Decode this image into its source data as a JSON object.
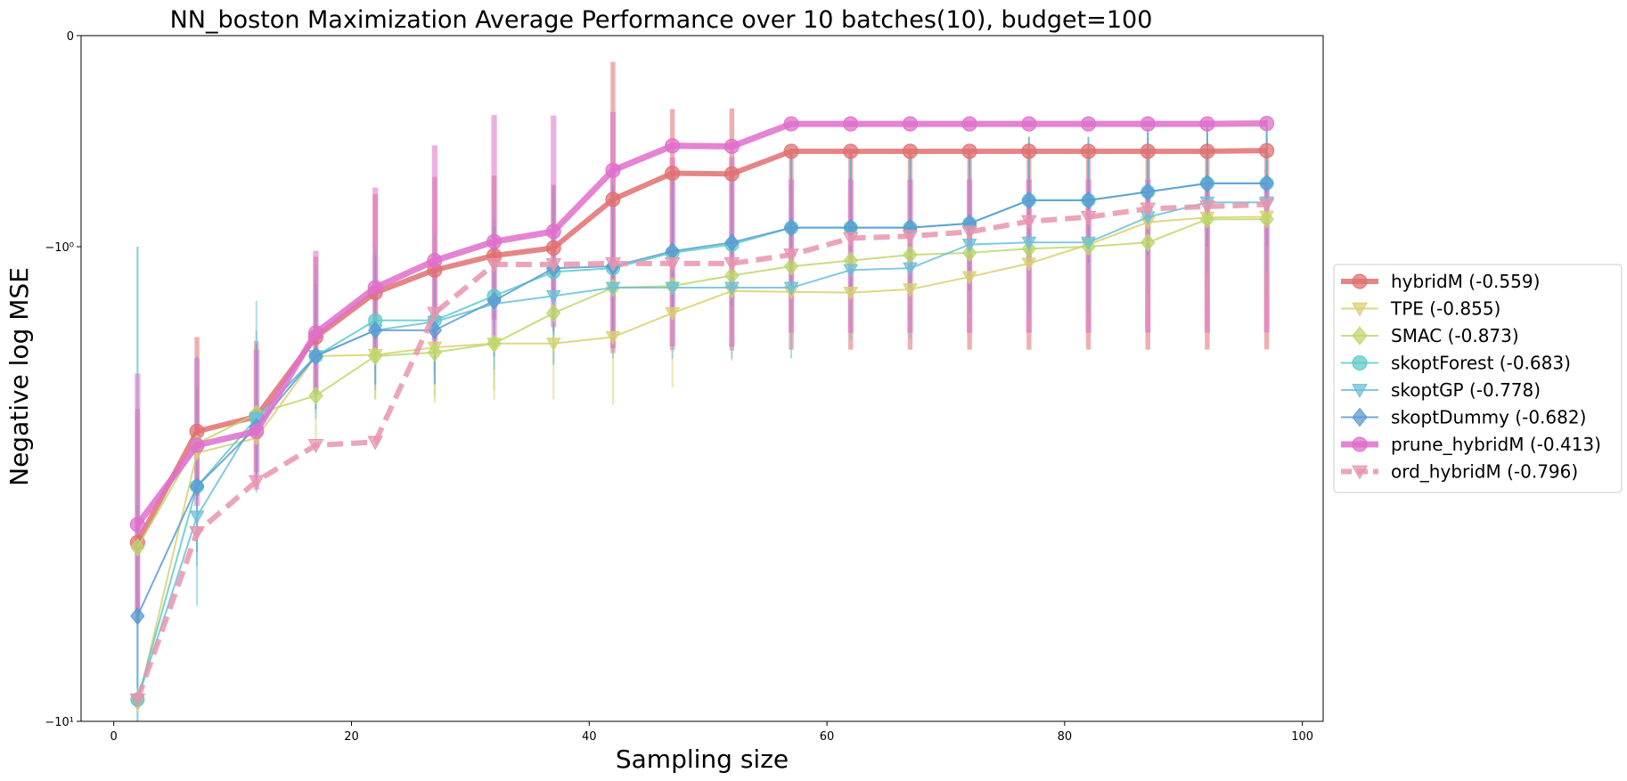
{
  "chart_data": {
    "type": "line",
    "title": "NN_boston Maximization Average Performance over 10 batches(10), budget=100",
    "xlabel": "Sampling size",
    "ylabel": "Negative log MSE",
    "xlim": [
      -2.75,
      101.75
    ],
    "ylim": [
      -10,
      0
    ],
    "yscale": "symlog",
    "x_ticks": [
      0,
      20,
      40,
      60,
      80,
      100
    ],
    "x_tick_labels": [
      "0",
      "20",
      "40",
      "60",
      "80",
      "100"
    ],
    "y_ticks": [
      0,
      -1,
      -10
    ],
    "y_tick_labels": [
      "0",
      "−10⁰",
      "−10¹"
    ],
    "grid": false,
    "legend_position": "right",
    "x": [
      2,
      7,
      12,
      17,
      22,
      27,
      32,
      37,
      42,
      47,
      52,
      57,
      62,
      67,
      72,
      77,
      82,
      87,
      92,
      97
    ],
    "series": [
      {
        "name": "hybridM (-0.559)",
        "color": "#e07070",
        "marker": "circle",
        "style": "solid",
        "width": 6,
        "values": [
          -4.2,
          -2.45,
          -2.28,
          -1.55,
          -1.25,
          -1.12,
          -1.044,
          -1.006,
          -0.776,
          -0.652,
          -0.655,
          -0.548,
          -0.548,
          -0.548,
          -0.548,
          -0.548,
          -0.548,
          -0.548,
          -0.548,
          -0.545
        ],
        "errors": [
          2.0,
          0.9,
          0.7,
          0.5,
          0.5,
          0.45,
          0.38,
          0.3,
          0.9,
          1.0,
          1.0,
          1.1,
          1.1,
          1.1,
          1.1,
          1.1,
          1.1,
          1.1,
          1.1,
          1.1
        ]
      },
      {
        "name": "TPE (-0.855)",
        "color": "#d8d070",
        "marker": "triangle-down",
        "style": "solid",
        "width": 2,
        "values": [
          -9.2,
          -2.72,
          -2.53,
          -1.7,
          -1.69,
          -1.63,
          -1.6,
          -1.6,
          -1.55,
          -1.38,
          -1.24,
          -1.245,
          -1.25,
          -1.23,
          -1.158,
          -1.085,
          -0.99,
          -0.884,
          -0.862,
          -0.858
        ],
        "errors": [
          0,
          0.7,
          0.6,
          0.5,
          0.4,
          0.5,
          0.5,
          0.5,
          0.6,
          0.6,
          0.5,
          0.3,
          0.3,
          0.3,
          0.3,
          0.3,
          0.35,
          0.4,
          0.4,
          0.4
        ]
      },
      {
        "name": "SMAC (-0.873)",
        "color": "#bcd86a",
        "marker": "diamond",
        "style": "solid",
        "width": 2,
        "values": [
          -4.3,
          -2.6,
          -2.25,
          -2.06,
          -1.7,
          -1.67,
          -1.6,
          -1.38,
          -1.22,
          -1.21,
          -1.15,
          -1.1,
          -1.07,
          -1.04,
          -1.03,
          -1.01,
          -1.0,
          -0.98,
          -0.87,
          -0.87
        ],
        "errors": [
          1.5,
          0.6,
          0.5,
          0.5,
          0.4,
          0.4,
          0.4,
          0.4,
          0.4,
          0.4,
          0.4,
          0.4,
          0.4,
          0.4,
          0.4,
          0.4,
          0.4,
          0.4,
          0.4,
          0.4
        ]
      },
      {
        "name": "skoptForest (-0.683)",
        "color": "#5cccc8",
        "marker": "circle",
        "style": "solid",
        "width": 2,
        "values": [
          -9.0,
          -3.2,
          -2.3,
          -1.7,
          -1.43,
          -1.43,
          -1.27,
          -1.13,
          -1.11,
          -1.03,
          -0.99,
          -0.91,
          -0.91,
          -0.91,
          -0.89,
          -0.78,
          -0.78,
          -0.74,
          -0.7,
          -0.7
        ],
        "errors": [
          10,
          1.5,
          0.8,
          0.5,
          0.4,
          0.4,
          0.4,
          0.4,
          0.4,
          0.4,
          0.4,
          0.35,
          0.35,
          0.35,
          0.35,
          0.3,
          0.3,
          0.3,
          0.3,
          0.3
        ]
      },
      {
        "name": "skoptGP (-0.778)",
        "color": "#6cc0d8",
        "marker": "triangle-down",
        "style": "solid",
        "width": 2,
        "values": [
          -9.0,
          -3.7,
          -2.3,
          -1.7,
          -1.5,
          -1.44,
          -1.32,
          -1.27,
          -1.22,
          -1.22,
          -1.22,
          -1.22,
          -1.12,
          -1.11,
          -0.99,
          -0.98,
          -0.98,
          -0.86,
          -0.79,
          -0.79
        ],
        "errors": [
          10,
          2.0,
          1.0,
          0.6,
          0.5,
          0.5,
          0.5,
          0.5,
          0.5,
          0.5,
          0.5,
          0.5,
          0.45,
          0.45,
          0.4,
          0.4,
          0.4,
          0.4,
          0.35,
          0.35
        ]
      },
      {
        "name": "skoptDummy (-0.682)",
        "color": "#5a9ad4",
        "marker": "diamond",
        "style": "solid",
        "width": 2,
        "values": [
          -6.0,
          -3.2,
          -2.4,
          -1.7,
          -1.5,
          -1.5,
          -1.3,
          -1.11,
          -1.1,
          -1.022,
          -0.98,
          -0.91,
          -0.91,
          -0.91,
          -0.89,
          -0.78,
          -0.78,
          -0.74,
          -0.7,
          -0.7
        ],
        "errors": [
          2.5,
          1.2,
          0.8,
          0.5,
          0.45,
          0.45,
          0.4,
          0.4,
          0.4,
          0.35,
          0.35,
          0.35,
          0.35,
          0.35,
          0.35,
          0.3,
          0.3,
          0.3,
          0.3,
          0.3
        ]
      },
      {
        "name": "prune_hybridM (-0.413)",
        "color": "#df6fcb",
        "marker": "circle",
        "style": "solid",
        "width": 7,
        "values": [
          -3.85,
          -2.62,
          -2.45,
          -1.52,
          -1.22,
          -1.07,
          -0.976,
          -0.928,
          -0.638,
          -0.522,
          -0.525,
          -0.418,
          -0.418,
          -0.418,
          -0.418,
          -0.418,
          -0.418,
          -0.418,
          -0.418,
          -0.416
        ],
        "errors": [
          2.0,
          0.9,
          0.8,
          0.5,
          0.5,
          0.55,
          0.6,
          0.55,
          1.0,
          1.1,
          1.1,
          1.1,
          1.1,
          1.1,
          1.1,
          1.1,
          1.1,
          1.1,
          1.1,
          1.1
        ]
      },
      {
        "name": "ord_hybridM (-0.796)",
        "color": "#e795ae",
        "marker": "triangle-down",
        "style": "dashed",
        "width": 6,
        "values": [
          -9.0,
          -4.0,
          -3.12,
          -2.62,
          -2.58,
          -1.38,
          -1.09,
          -1.09,
          -1.085,
          -1.085,
          -1.085,
          -1.04,
          -0.96,
          -0.95,
          -0.93,
          -0.88,
          -0.86,
          -0.82,
          -0.81,
          -0.8
        ],
        "errors": [
          0,
          0,
          0,
          0,
          0,
          0,
          0,
          0,
          0,
          0,
          0,
          0,
          0,
          0,
          0,
          0,
          0,
          0,
          0,
          0
        ]
      }
    ]
  }
}
